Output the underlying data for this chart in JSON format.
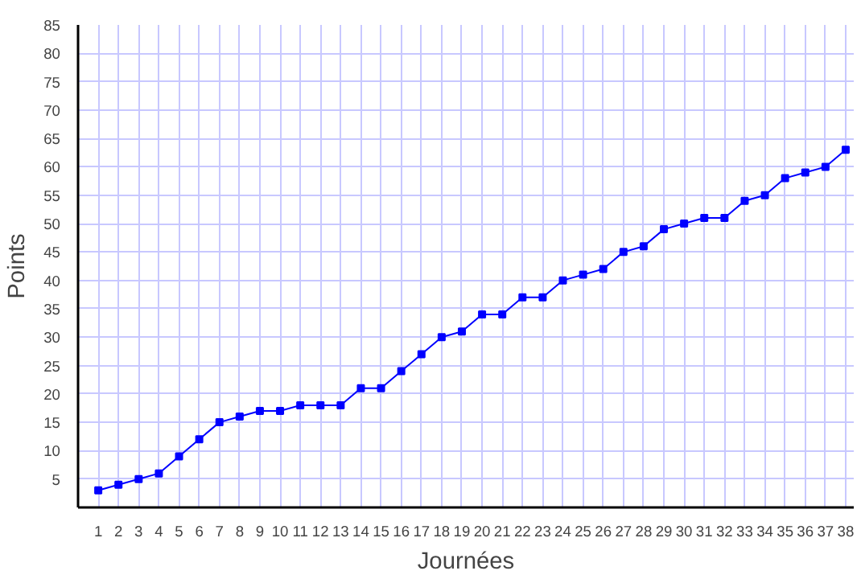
{
  "chart_data": {
    "type": "line",
    "xlabel": "Journées",
    "ylabel": "Points",
    "x": [
      1,
      2,
      3,
      4,
      5,
      6,
      7,
      8,
      9,
      10,
      11,
      12,
      13,
      14,
      15,
      16,
      17,
      18,
      19,
      20,
      21,
      22,
      23,
      24,
      25,
      26,
      27,
      28,
      29,
      30,
      31,
      32,
      33,
      34,
      35,
      36,
      37,
      38
    ],
    "series": [
      {
        "color": "#0000ff",
        "values": [
          3,
          4,
          5,
          6,
          9,
          12,
          15,
          16,
          17,
          17,
          18,
          18,
          18,
          21,
          21,
          24,
          27,
          30,
          31,
          34,
          34,
          37,
          37,
          40,
          41,
          42,
          45,
          46,
          49,
          50,
          51,
          51,
          54,
          55,
          58,
          59,
          60,
          63
        ]
      }
    ],
    "xlim": [
      0,
      38.4
    ],
    "ylim": [
      0,
      85
    ],
    "xticks": [
      1,
      2,
      3,
      4,
      5,
      6,
      7,
      8,
      9,
      10,
      11,
      12,
      13,
      14,
      15,
      16,
      17,
      18,
      19,
      20,
      21,
      22,
      23,
      24,
      25,
      26,
      27,
      28,
      29,
      30,
      31,
      32,
      33,
      34,
      35,
      36,
      37,
      38
    ],
    "yticks": [
      5,
      10,
      15,
      20,
      25,
      30,
      35,
      40,
      45,
      50,
      55,
      60,
      65,
      70,
      75,
      80,
      85
    ],
    "grid": true,
    "marker": "square",
    "line_style": "solid"
  }
}
